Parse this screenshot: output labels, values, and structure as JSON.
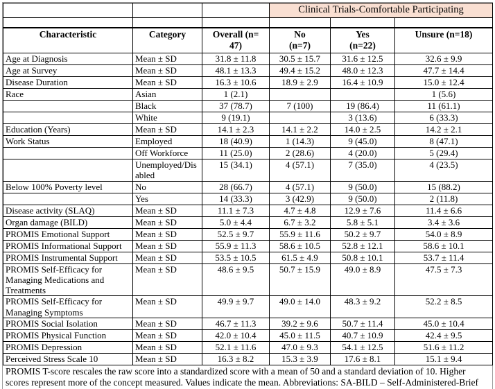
{
  "banner": {
    "label": "Clinical Trials-Comfortable Participating",
    "bg_color": "#F9DFD2"
  },
  "table": {
    "columns": [
      "Characteristic",
      "Category",
      "Overall (n=\n47)",
      "No\n(n=7)",
      "Yes\n(n=22)",
      "Unsure (n=18)"
    ],
    "rows": [
      [
        "Age at Diagnosis",
        "Mean ± SD",
        "31.8 ± 11.8",
        "30.5 ± 15.7",
        "31.6 ± 12.5",
        "32.6 ± 9.9"
      ],
      [
        "Age at Survey",
        "Mean ± SD",
        "48.1 ± 13.3",
        "49.4 ± 15.2",
        "48.0 ± 12.3",
        "47.7 ± 14.4"
      ],
      [
        "Disease Duration",
        "Mean ± SD",
        "16.3 ± 10.6",
        "18.9 ± 2.9",
        "16.4 ± 10.9",
        "15.0 ± 12.4"
      ],
      [
        "Race",
        "Asian",
        "1 (2.1)",
        "",
        "",
        "1 (5.6)"
      ],
      [
        "",
        "Black",
        "37 (78.7)",
        "7 (100)",
        "19 (86.4)",
        "11 (61.1)"
      ],
      [
        "",
        "White",
        "9 (19.1)",
        "",
        "3 (13.6)",
        "6 (33.3)"
      ],
      [
        "Education (Years)",
        "Mean ± SD",
        "14.1 ± 2.3",
        "14.1 ± 2.2",
        "14.0 ± 2.5",
        "14.2 ± 2.1"
      ],
      [
        "Work Status",
        "Employed",
        "18 (40.9)",
        "1 (14.3)",
        "9 (45.0)",
        "8 (47.1)"
      ],
      [
        "",
        "Off Workforce",
        "11 (25.0)",
        "2 (28.6)",
        "4 (20.0)",
        "5 (29.4)"
      ],
      [
        "",
        "Unemployed/Disabled",
        "15 (34.1)",
        "4 (57.1)",
        "7 (35.0)",
        "4 (23.5)"
      ],
      [
        "Below 100% Poverty level",
        "No",
        "28 (66.7)",
        "4 (57.1)",
        "9 (50.0)",
        "15 (88.2)"
      ],
      [
        "",
        "Yes",
        "14 (33.3)",
        "3 (42.9)",
        "9 (50.0)",
        "2 (11.8)"
      ],
      [
        "Disease activity (SLAQ)",
        "Mean ± SD",
        "11.1 ± 7.3",
        "4.7 ± 4.8",
        "12.9 ± 7.6",
        "11.4 ± 6.6"
      ],
      [
        "Organ damage (BILD)",
        "Mean ± SD",
        "5.0 ± 4.4",
        "6.7 ± 3.2",
        "5.8 ± 5.1",
        "3.4 ± 3.6"
      ],
      [
        "PROMIS Emotional Support",
        "Mean ± SD",
        "52.5 ± 9.7",
        "55.9 ± 11.6",
        "50.2 ± 9.7",
        "54.0 ± 8.9"
      ],
      [
        "PROMIS Informational Support",
        "Mean ± SD",
        "55.9 ± 11.3",
        "58.6 ± 10.5",
        "52.8 ± 12.1",
        "58.6 ± 10.1"
      ],
      [
        "PROMIS Instrumental Support",
        "Mean ± SD",
        "53.5 ± 10.5",
        "61.5 ± 4.9",
        "50.8 ± 10.1",
        "53.7 ± 11.4"
      ],
      [
        "PROMIS Self-Efficacy for Managing Medications and Treatments",
        "Mean ± SD",
        "48.6 ± 9.5",
        "50.7 ± 15.9",
        "49.0 ± 8.9",
        "47.5 ± 7.3"
      ],
      [
        "PROMIS Self-Efficacy for Managing Symptoms",
        "Mean ± SD",
        "49.9 ± 9.7",
        "49.0 ± 14.0",
        "48.3 ± 9.2",
        "52.2 ± 8.5"
      ],
      [
        "PROMIS Social Isolation",
        "Mean ± SD",
        "46.7 ± 11.3",
        "39.2 ± 9.6",
        "50.7 ± 11.4",
        "45.0 ± 10.4"
      ],
      [
        "PROMIS Physical Function",
        "Mean ± SD",
        "42.0 ± 10.4",
        "45.0 ± 11.5",
        "40.7 ± 10.9",
        "42.4 ± 9.5"
      ],
      [
        "PROMIS Depression",
        "Mean ± SD",
        "52.1 ± 11.6",
        "47.0 ± 9.3",
        "54.1 ± 12.5",
        "51.6 ± 11.2"
      ],
      [
        "Perceived Stress Scale 10",
        "Mean ± SD",
        "16.3 ± 8.2",
        "15.3 ± 3.9",
        "17.6 ± 8.1",
        "15.1 ± 9.4"
      ]
    ]
  },
  "footnote": {
    "text": "PROMIS T-score rescales the raw score into a standardized score with a mean of 50 and a standard deviation of 10. Higher scores represent more of the concept measured. Values indicate the mean.  Abbreviations: SA-BILD – Self-Administered-Brief Index of Lupus Damage, SLAQ – Systemic Lupus Activity Questionnaire"
  }
}
